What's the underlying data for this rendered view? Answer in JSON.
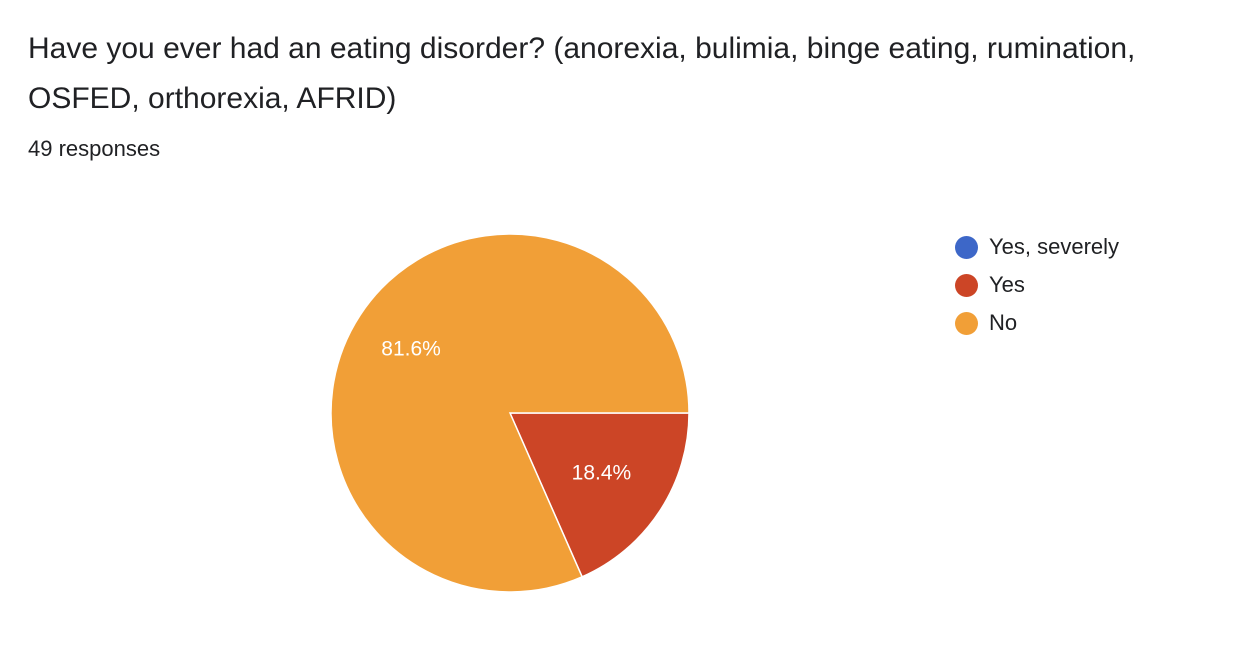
{
  "question": {
    "title": "Have you ever had an eating disorder? (anorexia, bulimia, binge eating, rumination, OSFED, orthorexia, AFRID)",
    "response_count": "49 responses"
  },
  "chart_data": {
    "type": "pie",
    "title": "Have you ever had an eating disorder? (anorexia, bulimia, binge eating, rumination, OSFED, orthorexia, AFRID)",
    "categories": [
      "Yes, severely",
      "Yes",
      "No"
    ],
    "values": [
      0,
      18.4,
      81.6
    ],
    "value_labels": [
      "",
      "18.4%",
      "81.6%"
    ],
    "colors": [
      "#3d67c8",
      "#cc4526",
      "#f19f37"
    ],
    "legend_position": "right"
  }
}
